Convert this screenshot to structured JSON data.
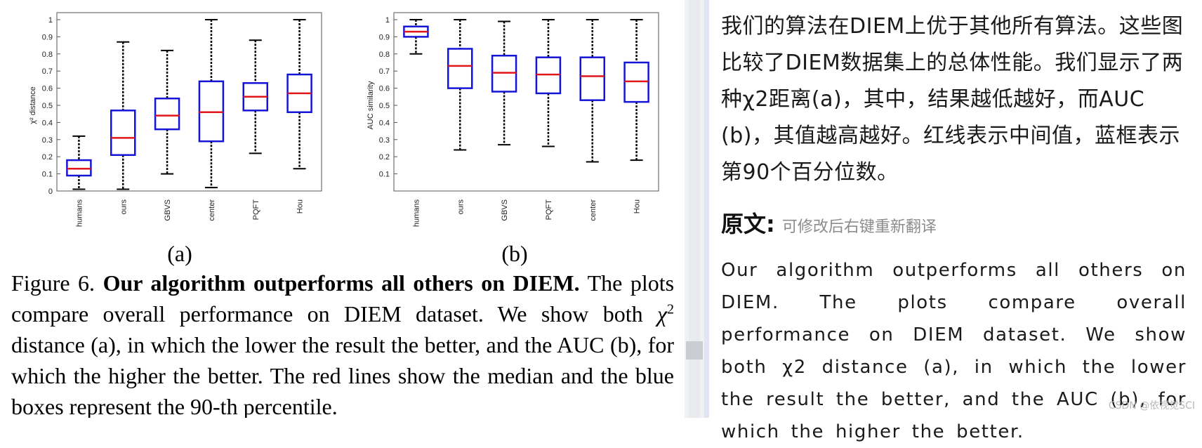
{
  "chart_data": [
    {
      "type": "box",
      "panel_label": "(a)",
      "ylabel": "χ² distance",
      "ylim": [
        0,
        1
      ],
      "yticks": [
        0,
        0.1,
        0.2,
        0.3,
        0.4,
        0.5,
        0.6,
        0.7,
        0.8,
        0.9,
        1
      ],
      "ytick_labels": [
        "0",
        "0.1",
        "0.2",
        "0.3",
        "0.4",
        "0.5",
        "0.6",
        "0.7",
        "0.8",
        "0.9",
        "1"
      ],
      "categories": [
        "humans",
        "ours",
        "GBVS",
        "center",
        "PQFT",
        "Hou"
      ],
      "boxes": [
        {
          "min": 0.01,
          "q1": 0.09,
          "median": 0.13,
          "q3": 0.18,
          "max": 0.32
        },
        {
          "min": 0.01,
          "q1": 0.21,
          "median": 0.31,
          "q3": 0.47,
          "max": 0.87
        },
        {
          "min": 0.1,
          "q1": 0.36,
          "median": 0.44,
          "q3": 0.54,
          "max": 0.82
        },
        {
          "min": 0.02,
          "q1": 0.29,
          "median": 0.46,
          "q3": 0.64,
          "max": 1.0
        },
        {
          "min": 0.22,
          "q1": 0.47,
          "median": 0.55,
          "q3": 0.63,
          "max": 0.88
        },
        {
          "min": 0.13,
          "q1": 0.46,
          "median": 0.57,
          "q3": 0.68,
          "max": 1.0
        }
      ],
      "box_color": "#1515d6",
      "median_color": "#e0161c",
      "grid": false
    },
    {
      "type": "box",
      "panel_label": "(b)",
      "ylabel": "AUC similarity",
      "ylim": [
        0,
        1
      ],
      "yticks": [
        0.1,
        0.2,
        0.3,
        0.4,
        0.5,
        0.6,
        0.7,
        0.8,
        0.9,
        1
      ],
      "ytick_labels": [
        "0.1",
        "0.2",
        "0.3",
        "0.4",
        "0.5",
        "0.6",
        "0.7",
        "0.8",
        "0.9",
        "1"
      ],
      "categories": [
        "humans",
        "ours",
        "GBVS",
        "PQFT",
        "center",
        "Hou"
      ],
      "boxes": [
        {
          "min": 0.8,
          "q1": 0.9,
          "median": 0.93,
          "q3": 0.96,
          "max": 1.0
        },
        {
          "min": 0.24,
          "q1": 0.6,
          "median": 0.73,
          "q3": 0.83,
          "max": 1.0
        },
        {
          "min": 0.27,
          "q1": 0.58,
          "median": 0.69,
          "q3": 0.79,
          "max": 0.99
        },
        {
          "min": 0.26,
          "q1": 0.57,
          "median": 0.68,
          "q3": 0.78,
          "max": 1.0
        },
        {
          "min": 0.17,
          "q1": 0.53,
          "median": 0.67,
          "q3": 0.78,
          "max": 1.0
        },
        {
          "min": 0.18,
          "q1": 0.52,
          "median": 0.64,
          "q3": 0.75,
          "max": 1.0
        }
      ],
      "box_color": "#1515d6",
      "median_color": "#e0161c",
      "grid": false
    }
  ],
  "caption": {
    "fig_label": "Figure 6.",
    "bold": "Our algorithm outperforms all others on DIEM.",
    "part1": "The plots compare overall performance on DIEM dataset.  We show both",
    "chi": "χ",
    "sup": "2",
    "part2": "distance (a), in which the lower the result the better, and the AUC (b), for which the higher the better.  The red lines show the median and the blue boxes represent the 90-th percentile."
  },
  "translation": {
    "zh_text": "我们的算法在DIEM上优于其他所有算法。这些图比较了DIEM数据集上的总体性能。我们显示了两种χ2距离(a)，其中，结果越低越好，而AUC (b)，其值越高越好。红线表示中间值，蓝框表示第90个百分位数。",
    "orig_title": "原文:",
    "orig_hint": "可修改后右键重新翻译",
    "en_text": "Our algorithm outperforms all others on DIEM. The plots compare overall performance on DIEM dataset. We show both χ2 distance (a), in which the lower the result the better, and the AUC (b), for which the higher the better."
  },
  "watermark": "CSDN @依视觉SCI"
}
